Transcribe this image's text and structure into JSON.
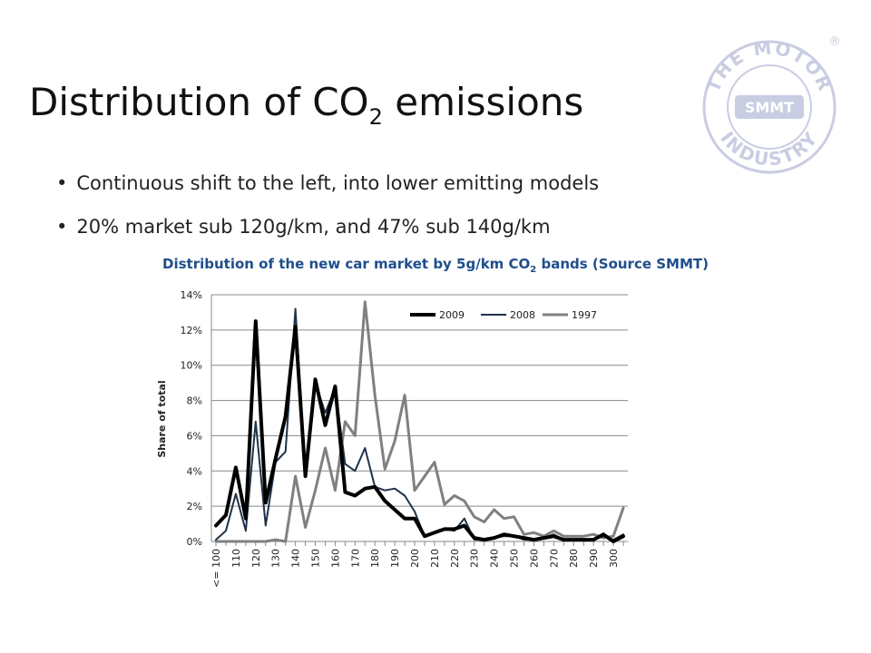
{
  "slide": {
    "title_main": "Distribution of CO",
    "title_sub": "2",
    "title_end": " emissions",
    "bullets": [
      "Continuous shift to the left, into lower emitting models",
      "20% market sub 120g/km, and 47% sub 140g/km"
    ],
    "chart_title_main": "Distribution of the new car market by 5g/km CO",
    "chart_title_sub": "2",
    "chart_title_end": " bands (Source SMMT)"
  },
  "logo": {
    "center_text": "SMMT",
    "ring_text_top": "THE MOTOR",
    "ring_text_bottom": "INDUSTRY",
    "registered": "®",
    "color": "#c9cde2"
  },
  "chart_data": {
    "type": "line",
    "ylabel": "Share of total",
    "xlabel": "",
    "ylim": [
      0,
      14
    ],
    "yticks": [
      "0%",
      "2%",
      "4%",
      "6%",
      "8%",
      "10%",
      "12%",
      "14%"
    ],
    "x_tick_labels": [
      "<= 100",
      "110",
      "120",
      "130",
      "140",
      "150",
      "160",
      "170",
      "180",
      "190",
      "200",
      "210",
      "220",
      "230",
      "240",
      "250",
      "260",
      "270",
      "280",
      "290",
      "300"
    ],
    "x": [
      "<= 100",
      "105",
      "110",
      "115",
      "120",
      "125",
      "130",
      "135",
      "140",
      "145",
      "150",
      "155",
      "160",
      "165",
      "170",
      "175",
      "180",
      "185",
      "190",
      "195",
      "200",
      "205",
      "210",
      "215",
      "220",
      "225",
      "230",
      "235",
      "240",
      "245",
      "250",
      "255",
      "260",
      "265",
      "270",
      "275",
      "280",
      "285",
      "290",
      "295",
      "300",
      "305"
    ],
    "grid": true,
    "legend_position": "top-right",
    "series": [
      {
        "name": "2009",
        "color": "#000000",
        "width": 4,
        "values": [
          0.9,
          1.5,
          4.2,
          1.3,
          12.5,
          2.2,
          4.7,
          7.1,
          12.2,
          3.7,
          9.2,
          6.6,
          8.8,
          2.8,
          2.6,
          3.0,
          3.1,
          2.3,
          1.8,
          1.3,
          1.3,
          0.3,
          0.5,
          0.7,
          0.7,
          0.9,
          0.2,
          0.1,
          0.2,
          0.4,
          0.3,
          0.2,
          0.1,
          0.2,
          0.3,
          0.1,
          0.1,
          0.1,
          0.1,
          0.4,
          0.0,
          0.3
        ]
      },
      {
        "name": "2008",
        "color": "#1f3347",
        "width": 2,
        "values": [
          0.1,
          0.6,
          2.7,
          0.6,
          6.8,
          0.9,
          4.5,
          5.1,
          13.2,
          3.8,
          9.0,
          7.3,
          8.7,
          4.4,
          4.0,
          5.3,
          3.1,
          2.9,
          3.0,
          2.6,
          1.7,
          0.3,
          0.5,
          0.7,
          0.6,
          1.3,
          0.1,
          0.1,
          0.2,
          0.3,
          0.3,
          0.1,
          0.1,
          0.2,
          0.4,
          0.1,
          0.1,
          0.1,
          0.1,
          0.3,
          0.1,
          0.4
        ]
      },
      {
        "name": "1997",
        "color": "#808080",
        "width": 3,
        "values": [
          0.0,
          0.0,
          0.0,
          0.0,
          0.0,
          0.0,
          0.1,
          0.0,
          3.7,
          0.8,
          2.9,
          5.3,
          2.9,
          6.8,
          6.0,
          13.6,
          8.3,
          4.1,
          5.7,
          8.3,
          2.9,
          3.7,
          4.5,
          2.1,
          2.6,
          2.3,
          1.4,
          1.1,
          1.8,
          1.3,
          1.4,
          0.4,
          0.5,
          0.3,
          0.6,
          0.3,
          0.3,
          0.3,
          0.4,
          0.2,
          0.3,
          1.9
        ]
      }
    ]
  }
}
